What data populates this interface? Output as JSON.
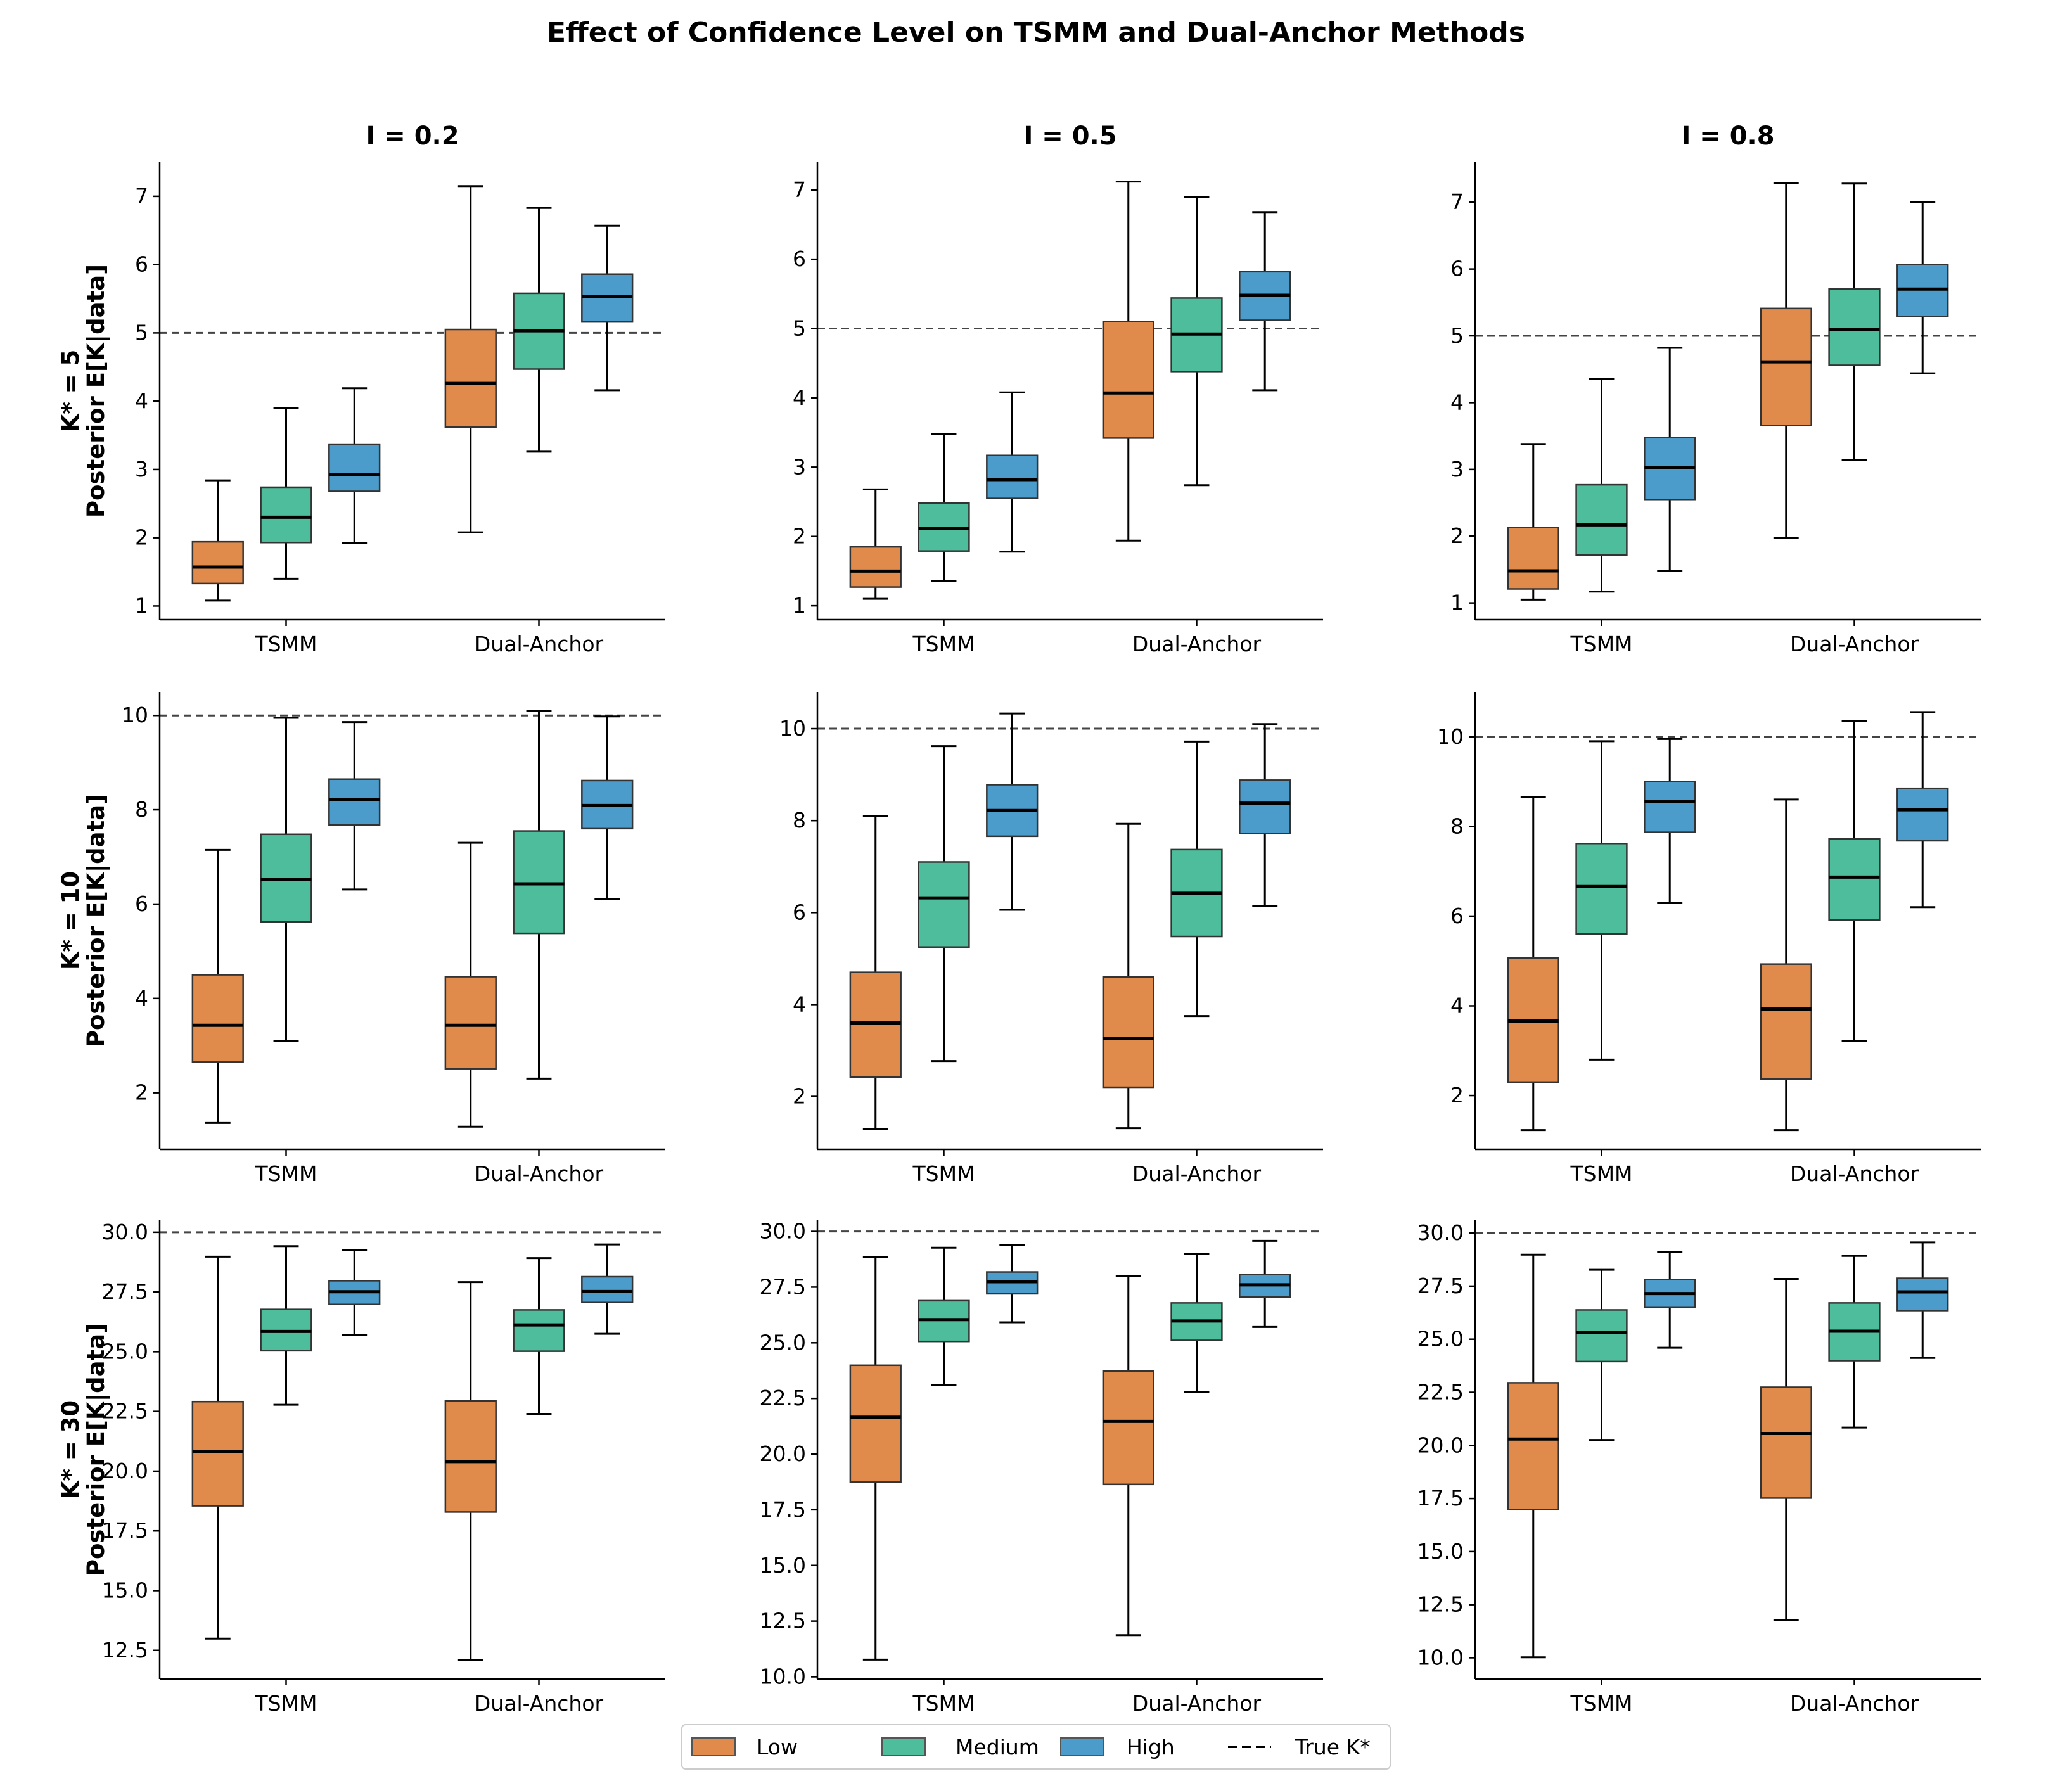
{
  "title": "Effect of Confidence Level on TSMM and Dual-Anchor Methods",
  "colors": {
    "Low": "#e08a4b",
    "Medium": "#4dbd9b",
    "High": "#4c9ccb",
    "true_line": "#444444"
  },
  "legend": {
    "low": "Low",
    "medium": "Medium",
    "high": "High",
    "true": "True K*"
  },
  "chart_data": [
    {
      "type": "box",
      "row": 0,
      "col": 0,
      "col_title": "I = 0.2",
      "row_label": [
        "K* = 5",
        "Posterior E[K|data]"
      ],
      "categories": [
        "TSMM",
        "Dual-Anchor"
      ],
      "ylim": [
        0.8,
        7.5
      ],
      "yticks": [
        1,
        2,
        3,
        4,
        5,
        6,
        7
      ],
      "tick_labels": [
        "1",
        "2",
        "3",
        "4",
        "5",
        "6",
        "7"
      ],
      "true_k": 5,
      "boxes": [
        {
          "method": "TSMM",
          "level": "Low",
          "min": 1.08,
          "q1": 1.33,
          "median": 1.57,
          "q3": 1.94,
          "max": 2.84
        },
        {
          "method": "TSMM",
          "level": "Medium",
          "min": 1.4,
          "q1": 1.93,
          "median": 2.3,
          "q3": 2.74,
          "max": 3.9
        },
        {
          "method": "TSMM",
          "level": "High",
          "min": 1.92,
          "q1": 2.68,
          "median": 2.92,
          "q3": 3.37,
          "max": 4.19
        },
        {
          "method": "Dual-Anchor",
          "level": "Low",
          "min": 2.08,
          "q1": 3.62,
          "median": 4.26,
          "q3": 5.05,
          "max": 7.15
        },
        {
          "method": "Dual-Anchor",
          "level": "Medium",
          "min": 3.26,
          "q1": 4.47,
          "median": 5.03,
          "q3": 5.58,
          "max": 6.83
        },
        {
          "method": "Dual-Anchor",
          "level": "High",
          "min": 4.16,
          "q1": 5.16,
          "median": 5.53,
          "q3": 5.86,
          "max": 6.57
        }
      ]
    },
    {
      "type": "box",
      "row": 0,
      "col": 1,
      "col_title": "I = 0.5",
      "row_label": [],
      "categories": [
        "TSMM",
        "Dual-Anchor"
      ],
      "ylim": [
        0.8,
        7.4
      ],
      "yticks": [
        1,
        2,
        3,
        4,
        5,
        6,
        7
      ],
      "tick_labels": [
        "1",
        "2",
        "3",
        "4",
        "5",
        "6",
        "7"
      ],
      "true_k": 5,
      "boxes": [
        {
          "method": "TSMM",
          "level": "Low",
          "min": 1.1,
          "q1": 1.27,
          "median": 1.5,
          "q3": 1.85,
          "max": 2.68
        },
        {
          "method": "TSMM",
          "level": "Medium",
          "min": 1.36,
          "q1": 1.79,
          "median": 2.12,
          "q3": 2.48,
          "max": 3.48
        },
        {
          "method": "TSMM",
          "level": "High",
          "min": 1.78,
          "q1": 2.55,
          "median": 2.82,
          "q3": 3.17,
          "max": 4.08
        },
        {
          "method": "Dual-Anchor",
          "level": "Low",
          "min": 1.94,
          "q1": 3.42,
          "median": 4.07,
          "q3": 5.1,
          "max": 7.12
        },
        {
          "method": "Dual-Anchor",
          "level": "Medium",
          "min": 2.74,
          "q1": 4.38,
          "median": 4.92,
          "q3": 5.44,
          "max": 6.9
        },
        {
          "method": "Dual-Anchor",
          "level": "High",
          "min": 4.11,
          "q1": 5.12,
          "median": 5.48,
          "q3": 5.82,
          "max": 6.68
        }
      ]
    },
    {
      "type": "box",
      "row": 0,
      "col": 2,
      "col_title": "I = 0.8",
      "row_label": [],
      "categories": [
        "TSMM",
        "Dual-Anchor"
      ],
      "ylim": [
        0.75,
        7.6
      ],
      "yticks": [
        1,
        2,
        3,
        4,
        5,
        6,
        7
      ],
      "tick_labels": [
        "1",
        "2",
        "3",
        "4",
        "5",
        "6",
        "7"
      ],
      "true_k": 5,
      "boxes": [
        {
          "method": "TSMM",
          "level": "Low",
          "min": 1.05,
          "q1": 1.21,
          "median": 1.48,
          "q3": 2.13,
          "max": 3.38
        },
        {
          "method": "TSMM",
          "level": "Medium",
          "min": 1.17,
          "q1": 1.72,
          "median": 2.17,
          "q3": 2.77,
          "max": 4.35
        },
        {
          "method": "TSMM",
          "level": "High",
          "min": 1.48,
          "q1": 2.55,
          "median": 3.03,
          "q3": 3.48,
          "max": 4.82
        },
        {
          "method": "Dual-Anchor",
          "level": "Low",
          "min": 1.97,
          "q1": 3.66,
          "median": 4.61,
          "q3": 5.41,
          "max": 7.29
        },
        {
          "method": "Dual-Anchor",
          "level": "Medium",
          "min": 3.14,
          "q1": 4.56,
          "median": 5.1,
          "q3": 5.7,
          "max": 7.28
        },
        {
          "method": "Dual-Anchor",
          "level": "High",
          "min": 4.44,
          "q1": 5.29,
          "median": 5.7,
          "q3": 6.07,
          "max": 7.0
        }
      ]
    },
    {
      "type": "box",
      "row": 1,
      "col": 0,
      "col_title": "",
      "row_label": [
        "K* = 10",
        "Posterior E[K|data]"
      ],
      "categories": [
        "TSMM",
        "Dual-Anchor"
      ],
      "ylim": [
        0.8,
        10.5
      ],
      "yticks": [
        2,
        4,
        6,
        8,
        10
      ],
      "tick_labels": [
        "2",
        "4",
        "6",
        "8",
        "10"
      ],
      "true_k": 10,
      "boxes": [
        {
          "method": "TSMM",
          "level": "Low",
          "min": 1.36,
          "q1": 2.65,
          "median": 3.43,
          "q3": 4.5,
          "max": 7.15
        },
        {
          "method": "TSMM",
          "level": "Medium",
          "min": 3.1,
          "q1": 5.62,
          "median": 6.53,
          "q3": 7.48,
          "max": 9.95
        },
        {
          "method": "TSMM",
          "level": "High",
          "min": 6.31,
          "q1": 7.68,
          "median": 8.21,
          "q3": 8.65,
          "max": 9.86
        },
        {
          "method": "Dual-Anchor",
          "level": "Low",
          "min": 1.28,
          "q1": 2.51,
          "median": 3.43,
          "q3": 4.46,
          "max": 7.3
        },
        {
          "method": "Dual-Anchor",
          "level": "Medium",
          "min": 2.3,
          "q1": 5.38,
          "median": 6.43,
          "q3": 7.55,
          "max": 10.1
        },
        {
          "method": "Dual-Anchor",
          "level": "High",
          "min": 6.1,
          "q1": 7.6,
          "median": 8.09,
          "q3": 8.62,
          "max": 9.98
        }
      ]
    },
    {
      "type": "box",
      "row": 1,
      "col": 1,
      "col_title": "",
      "row_label": [],
      "categories": [
        "TSMM",
        "Dual-Anchor"
      ],
      "ylim": [
        0.85,
        10.8
      ],
      "yticks": [
        2,
        4,
        6,
        8,
        10
      ],
      "tick_labels": [
        "2",
        "4",
        "6",
        "8",
        "10"
      ],
      "true_k": 10,
      "boxes": [
        {
          "method": "TSMM",
          "level": "Low",
          "min": 1.29,
          "q1": 2.42,
          "median": 3.6,
          "q3": 4.7,
          "max": 8.1
        },
        {
          "method": "TSMM",
          "level": "Medium",
          "min": 2.77,
          "q1": 5.25,
          "median": 6.32,
          "q3": 7.1,
          "max": 9.62
        },
        {
          "method": "TSMM",
          "level": "High",
          "min": 6.06,
          "q1": 7.66,
          "median": 8.22,
          "q3": 8.78,
          "max": 10.33
        },
        {
          "method": "Dual-Anchor",
          "level": "Low",
          "min": 1.31,
          "q1": 2.2,
          "median": 3.26,
          "q3": 4.6,
          "max": 7.93
        },
        {
          "method": "Dual-Anchor",
          "level": "Medium",
          "min": 3.75,
          "q1": 5.48,
          "median": 6.42,
          "q3": 7.37,
          "max": 9.72
        },
        {
          "method": "Dual-Anchor",
          "level": "High",
          "min": 6.14,
          "q1": 7.72,
          "median": 8.38,
          "q3": 8.88,
          "max": 10.1
        }
      ]
    },
    {
      "type": "box",
      "row": 1,
      "col": 2,
      "col_title": "",
      "row_label": [],
      "categories": [
        "TSMM",
        "Dual-Anchor"
      ],
      "ylim": [
        0.8,
        11.0
      ],
      "yticks": [
        2,
        4,
        6,
        8,
        10
      ],
      "tick_labels": [
        "2",
        "4",
        "6",
        "8",
        "10"
      ],
      "true_k": 10,
      "boxes": [
        {
          "method": "TSMM",
          "level": "Low",
          "min": 1.23,
          "q1": 2.3,
          "median": 3.66,
          "q3": 5.07,
          "max": 8.66
        },
        {
          "method": "TSMM",
          "level": "Medium",
          "min": 2.8,
          "q1": 5.6,
          "median": 6.66,
          "q3": 7.62,
          "max": 9.9
        },
        {
          "method": "TSMM",
          "level": "High",
          "min": 6.3,
          "q1": 7.87,
          "median": 8.56,
          "q3": 9.0,
          "max": 9.95
        },
        {
          "method": "Dual-Anchor",
          "level": "Low",
          "min": 1.23,
          "q1": 2.37,
          "median": 3.93,
          "q3": 4.93,
          "max": 8.6
        },
        {
          "method": "Dual-Anchor",
          "level": "Medium",
          "min": 3.22,
          "q1": 5.91,
          "median": 6.87,
          "q3": 7.72,
          "max": 10.35
        },
        {
          "method": "Dual-Anchor",
          "level": "High",
          "min": 6.2,
          "q1": 7.68,
          "median": 8.37,
          "q3": 8.85,
          "max": 10.55
        }
      ]
    },
    {
      "type": "box",
      "row": 2,
      "col": 0,
      "col_title": "",
      "row_label": [
        "K* = 30",
        "Posterior E[K|data]"
      ],
      "categories": [
        "TSMM",
        "Dual-Anchor"
      ],
      "ylim": [
        11.3,
        30.5
      ],
      "yticks": [
        12.5,
        15,
        17.5,
        20,
        22.5,
        25,
        27.5,
        30
      ],
      "tick_labels": [
        "12.5",
        "15.0",
        "17.5",
        "20.0",
        "22.5",
        "25.0",
        "27.5",
        "30.0"
      ],
      "true_k": 30,
      "boxes": [
        {
          "method": "TSMM",
          "level": "Low",
          "min": 12.99,
          "q1": 18.55,
          "median": 20.82,
          "q3": 22.91,
          "max": 28.98
        },
        {
          "method": "TSMM",
          "level": "Medium",
          "min": 22.78,
          "q1": 25.04,
          "median": 25.85,
          "q3": 26.77,
          "max": 29.42
        },
        {
          "method": "TSMM",
          "level": "High",
          "min": 25.7,
          "q1": 26.98,
          "median": 27.51,
          "q3": 27.97,
          "max": 29.24
        },
        {
          "method": "Dual-Anchor",
          "level": "Low",
          "min": 12.09,
          "q1": 18.29,
          "median": 20.4,
          "q3": 22.94,
          "max": 27.91
        },
        {
          "method": "Dual-Anchor",
          "level": "Medium",
          "min": 22.4,
          "q1": 25.02,
          "median": 26.12,
          "q3": 26.75,
          "max": 28.92
        },
        {
          "method": "Dual-Anchor",
          "level": "High",
          "min": 25.75,
          "q1": 27.06,
          "median": 27.52,
          "q3": 28.14,
          "max": 29.49
        }
      ]
    },
    {
      "type": "box",
      "row": 2,
      "col": 1,
      "col_title": "",
      "row_label": [],
      "categories": [
        "TSMM",
        "Dual-Anchor"
      ],
      "ylim": [
        9.9,
        30.5
      ],
      "yticks": [
        10,
        12.5,
        15,
        17.5,
        20,
        22.5,
        25,
        27.5,
        30
      ],
      "tick_labels": [
        "10.0",
        "12.5",
        "15.0",
        "17.5",
        "20.0",
        "22.5",
        "25.0",
        "27.5",
        "30.0"
      ],
      "true_k": 30,
      "boxes": [
        {
          "method": "TSMM",
          "level": "Low",
          "min": 10.77,
          "q1": 18.74,
          "median": 21.66,
          "q3": 23.99,
          "max": 28.84
        },
        {
          "method": "TSMM",
          "level": "Medium",
          "min": 23.1,
          "q1": 25.06,
          "median": 26.04,
          "q3": 26.89,
          "max": 29.27
        },
        {
          "method": "TSMM",
          "level": "High",
          "min": 25.92,
          "q1": 27.2,
          "median": 27.74,
          "q3": 28.18,
          "max": 29.38
        },
        {
          "method": "Dual-Anchor",
          "level": "Low",
          "min": 11.87,
          "q1": 18.64,
          "median": 21.47,
          "q3": 23.73,
          "max": 28.01
        },
        {
          "method": "Dual-Anchor",
          "level": "Medium",
          "min": 22.8,
          "q1": 25.11,
          "median": 25.98,
          "q3": 26.79,
          "max": 28.98
        },
        {
          "method": "Dual-Anchor",
          "level": "High",
          "min": 25.71,
          "q1": 27.06,
          "median": 27.6,
          "q3": 28.07,
          "max": 29.58
        }
      ]
    },
    {
      "type": "box",
      "row": 2,
      "col": 2,
      "col_title": "",
      "row_label": [],
      "categories": [
        "TSMM",
        "Dual-Anchor"
      ],
      "ylim": [
        9.0,
        30.6
      ],
      "yticks": [
        10,
        12.5,
        15,
        17.5,
        20,
        22.5,
        25,
        27.5,
        30
      ],
      "tick_labels": [
        "10.0",
        "12.5",
        "15.0",
        "17.5",
        "20.0",
        "22.5",
        "25.0",
        "27.5",
        "30.0"
      ],
      "true_k": 30,
      "boxes": [
        {
          "method": "TSMM",
          "level": "Low",
          "min": 10.02,
          "q1": 16.98,
          "median": 20.3,
          "q3": 22.95,
          "max": 28.98
        },
        {
          "method": "TSMM",
          "level": "Medium",
          "min": 20.26,
          "q1": 23.95,
          "median": 25.32,
          "q3": 26.38,
          "max": 28.27
        },
        {
          "method": "TSMM",
          "level": "High",
          "min": 24.6,
          "q1": 26.49,
          "median": 27.15,
          "q3": 27.81,
          "max": 29.11
        },
        {
          "method": "Dual-Anchor",
          "level": "Low",
          "min": 11.79,
          "q1": 17.52,
          "median": 20.56,
          "q3": 22.74,
          "max": 27.84
        },
        {
          "method": "Dual-Anchor",
          "level": "Medium",
          "min": 20.84,
          "q1": 23.99,
          "median": 25.38,
          "q3": 26.71,
          "max": 28.92
        },
        {
          "method": "Dual-Anchor",
          "level": "High",
          "min": 24.12,
          "q1": 26.35,
          "median": 27.23,
          "q3": 27.87,
          "max": 29.56
        }
      ]
    }
  ]
}
